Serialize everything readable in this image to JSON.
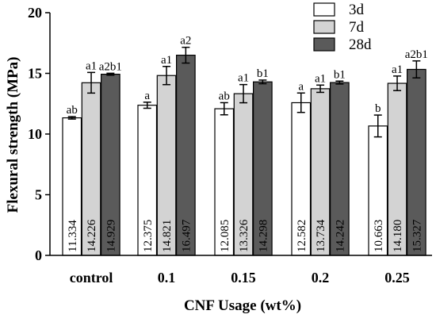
{
  "chart_data": {
    "type": "bar",
    "xlabel": "CNF Usage (wt%)",
    "ylabel": "Flexural strength (MPa)",
    "ylim": [
      0,
      20
    ],
    "yticks": [
      0,
      5,
      10,
      15,
      20
    ],
    "categories": [
      "control",
      "0.1",
      "0.15",
      "0.2",
      "0.25"
    ],
    "legend_position": "top-right",
    "grid": false,
    "series": [
      {
        "name": "3d",
        "color": "#ffffff",
        "values": [
          11.334,
          12.375,
          12.085,
          12.582,
          10.663
        ],
        "value_labels": [
          "11.334",
          "12.375",
          "12.085",
          "12.582",
          "10.663"
        ],
        "errors": [
          0.1,
          0.25,
          0.5,
          0.8,
          0.9
        ],
        "significance": [
          "ab",
          "a",
          "ab",
          "a",
          "b"
        ]
      },
      {
        "name": "7d",
        "color": "#d3d3d3",
        "values": [
          14.226,
          14.821,
          13.326,
          13.734,
          14.18
        ],
        "value_labels": [
          "14.226",
          "14.821",
          "13.326",
          "13.734",
          "14.180"
        ],
        "errors": [
          0.85,
          0.75,
          0.75,
          0.3,
          0.6
        ],
        "significance": [
          "a1",
          "a1",
          "a1",
          "a1",
          "a1"
        ]
      },
      {
        "name": "28d",
        "color": "#5a5a5a",
        "values": [
          14.929,
          16.497,
          14.298,
          14.242,
          15.327
        ],
        "value_labels": [
          "14.929",
          "16.497",
          "14.298",
          "14.242",
          "15.327"
        ],
        "errors": [
          0.08,
          0.65,
          0.15,
          0.12,
          0.7
        ],
        "significance": [
          "a2b1",
          "a2",
          "b1",
          "b1",
          "a2b1"
        ]
      }
    ]
  }
}
